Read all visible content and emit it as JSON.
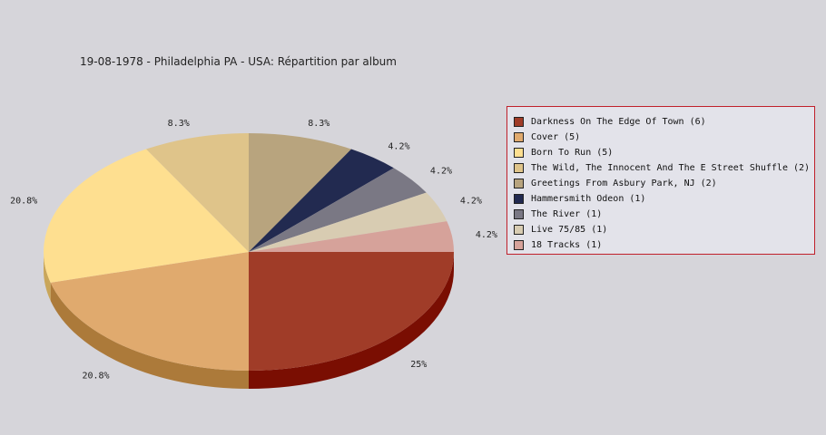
{
  "chart_data": {
    "type": "pie",
    "title": "19-08-1978 - Philadelphia PA - USA:  Répartition par album",
    "legend_position": "right",
    "slices": [
      {
        "label": "Darkness On The Edge Of Town (6)",
        "value": 6,
        "percent_label": "25%",
        "color": "#a03c28",
        "side_color": "#7a0e02"
      },
      {
        "label": "Cover (5)",
        "value": 5,
        "percent_label": "20.8%",
        "color": "#e0aa6e",
        "side_color": "#ac7a3a"
      },
      {
        "label": "Born To Run (5)",
        "value": 5,
        "percent_label": "20.8%",
        "color": "#fedf90",
        "side_color": "#c9a65a"
      },
      {
        "label": "The Wild, The Innocent And The E Street Shuffle (2)",
        "value": 2,
        "percent_label": "8.3%",
        "color": "#dfc48a",
        "side_color": "#aa8f5a"
      },
      {
        "label": "Greetings From Asbury Park, NJ (2)",
        "value": 2,
        "percent_label": "8.3%",
        "color": "#b8a47e",
        "side_color": "#8a7650"
      },
      {
        "label": "Hammersmith Odeon  (1)",
        "value": 1,
        "percent_label": "4.2%",
        "color": "#222a50",
        "side_color": "#101530"
      },
      {
        "label": "The River (1)",
        "value": 1,
        "percent_label": "4.2%",
        "color": "#7a7884",
        "side_color": "#55535c"
      },
      {
        "label": "Live 75/85 (1)",
        "value": 1,
        "percent_label": "4.2%",
        "color": "#d8ccb2",
        "side_color": "#a89c82"
      },
      {
        "label": "18 Tracks (1)",
        "value": 1,
        "percent_label": "4.2%",
        "color": "#d6a29a",
        "side_color": "#a8766e"
      }
    ]
  }
}
